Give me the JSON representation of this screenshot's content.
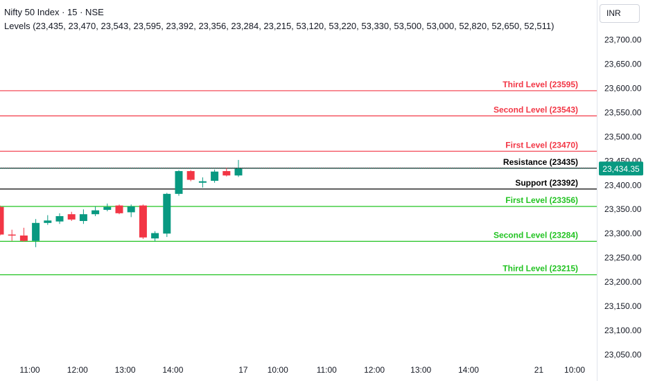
{
  "header": {
    "title": "Nifty 50 Index · 15 · NSE",
    "levels_text": "Levels (23,435, 23,470, 23,543, 23,595, 23,392, 23,356, 23,284, 23,215, 53,120, 53,220, 53,330, 53,500, 53,000, 52,820, 52,650, 52,511)",
    "currency": "INR"
  },
  "colors": {
    "up": "#26a69a",
    "up_dark": "#089981",
    "down": "#f23645",
    "resistance": "#f23645",
    "support": "#22c322",
    "pivot_line": "#000000",
    "axis_text": "#131722",
    "price_tag_bg": "#089981"
  },
  "chart_data": {
    "type": "candlestick",
    "ylim": [
      23040,
      23730
    ],
    "y_ticks": [
      23050,
      23100,
      23150,
      23200,
      23250,
      23300,
      23350,
      23400,
      23450,
      23500,
      23550,
      23600,
      23650,
      23700
    ],
    "y_tick_labels": [
      "23,050.00",
      "23,100.00",
      "23,150.00",
      "23,200.00",
      "23,250.00",
      "23,300.00",
      "23,350.00",
      "23,400.00",
      "23,450.00",
      "23,500.00",
      "23,550.00",
      "23,600.00",
      "23,650.00",
      "23,700.00"
    ],
    "x_ticks": [
      {
        "label": "11:00",
        "bar": 2.5
      },
      {
        "label": "12:00",
        "bar": 6.5
      },
      {
        "label": "13:00",
        "bar": 10.5
      },
      {
        "label": "14:00",
        "bar": 14.5
      },
      {
        "label": "17",
        "bar": 20.4
      },
      {
        "label": "10:00",
        "bar": 23.3
      },
      {
        "label": "11:00",
        "bar": 27.4
      },
      {
        "label": "12:00",
        "bar": 31.4
      },
      {
        "label": "13:00",
        "bar": 35.3
      },
      {
        "label": "14:00",
        "bar": 39.3
      },
      {
        "label": "21",
        "bar": 45.2
      },
      {
        "label": "10:00",
        "bar": 48.2
      }
    ],
    "candles": [
      {
        "o": 23355,
        "h": 23358,
        "l": 23296,
        "c": 23298
      },
      {
        "o": 23298,
        "h": 23308,
        "l": 23285,
        "c": 23296
      },
      {
        "o": 23296,
        "h": 23312,
        "l": 23283,
        "c": 23285
      },
      {
        "o": 23285,
        "h": 23330,
        "l": 23272,
        "c": 23322
      },
      {
        "o": 23322,
        "h": 23338,
        "l": 23318,
        "c": 23327
      },
      {
        "o": 23325,
        "h": 23342,
        "l": 23320,
        "c": 23336
      },
      {
        "o": 23340,
        "h": 23345,
        "l": 23326,
        "c": 23329
      },
      {
        "o": 23326,
        "h": 23350,
        "l": 23320,
        "c": 23340
      },
      {
        "o": 23340,
        "h": 23356,
        "l": 23336,
        "c": 23348
      },
      {
        "o": 23349,
        "h": 23362,
        "l": 23346,
        "c": 23355
      },
      {
        "o": 23358,
        "h": 23360,
        "l": 23340,
        "c": 23342
      },
      {
        "o": 23344,
        "h": 23360,
        "l": 23334,
        "c": 23356
      },
      {
        "o": 23358,
        "h": 23360,
        "l": 23289,
        "c": 23292
      },
      {
        "o": 23290,
        "h": 23305,
        "l": 23284,
        "c": 23301
      },
      {
        "o": 23300,
        "h": 23384,
        "l": 23293,
        "c": 23382
      },
      {
        "o": 23382,
        "h": 23431,
        "l": 23378,
        "c": 23429
      },
      {
        "o": 23429,
        "h": 23431,
        "l": 23408,
        "c": 23411
      },
      {
        "o": 23405,
        "h": 23416,
        "l": 23395,
        "c": 23408
      },
      {
        "o": 23409,
        "h": 23432,
        "l": 23405,
        "c": 23428
      },
      {
        "o": 23429,
        "h": 23436,
        "l": 23418,
        "c": 23420
      },
      {
        "o": 23420,
        "h": 23452,
        "l": 23417,
        "c": 23434
      }
    ],
    "levels": [
      {
        "label": "Third Level (23595)",
        "value": 23595,
        "kind": "resistance"
      },
      {
        "label": "Second Level (23543)",
        "value": 23543,
        "kind": "resistance"
      },
      {
        "label": "First Level (23470)",
        "value": 23470,
        "kind": "resistance"
      },
      {
        "label": "Resistance (23435)",
        "value": 23435,
        "kind": "pivot"
      },
      {
        "label": "Support (23392)",
        "value": 23392,
        "kind": "pivot"
      },
      {
        "label": "First Level (23356)",
        "value": 23356,
        "kind": "support"
      },
      {
        "label": "Second Level (23284)",
        "value": 23284,
        "kind": "support"
      },
      {
        "label": "Third Level (23215)",
        "value": 23215,
        "kind": "support"
      }
    ],
    "last_price": 23434.35,
    "last_price_label": "23,434.35"
  }
}
